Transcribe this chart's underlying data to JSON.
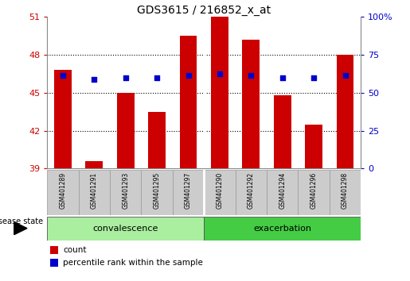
{
  "title": "GDS3615 / 216852_x_at",
  "samples": [
    "GSM401289",
    "GSM401291",
    "GSM401293",
    "GSM401295",
    "GSM401297",
    "GSM401290",
    "GSM401292",
    "GSM401294",
    "GSM401296",
    "GSM401298"
  ],
  "count_values": [
    46.8,
    39.6,
    45.0,
    43.5,
    49.5,
    51.0,
    49.2,
    44.8,
    42.5,
    48.0
  ],
  "percentile_values": [
    46.35,
    46.05,
    46.2,
    46.2,
    46.4,
    46.5,
    46.4,
    46.2,
    46.2,
    46.35
  ],
  "groups": [
    {
      "label": "convalescence",
      "start": 0,
      "end": 5
    },
    {
      "label": "exacerbation",
      "start": 5,
      "end": 10
    }
  ],
  "ylim_left": [
    39,
    51
  ],
  "ylim_right": [
    0,
    100
  ],
  "yticks_left": [
    39,
    42,
    45,
    48,
    51
  ],
  "yticks_right": [
    0,
    25,
    50,
    75,
    100
  ],
  "ytick_labels_right": [
    "0",
    "25",
    "50",
    "75",
    "100%"
  ],
  "bar_color": "#cc0000",
  "dot_color": "#0000cc",
  "left_tick_color": "#cc0000",
  "right_tick_color": "#0000cc",
  "group_bg_convalescence": "#aaeea0",
  "group_bg_exacerbation": "#44cc44",
  "sample_bg_color": "#cccccc",
  "sample_border_color": "#999999",
  "legend_count_label": "count",
  "legend_pct_label": "percentile rank within the sample",
  "group_label_prefix": "disease state",
  "bar_width": 0.55,
  "base_value": 39,
  "grid_yticks": [
    42,
    45,
    48
  ],
  "n_samples": 10,
  "group_divider": 5
}
